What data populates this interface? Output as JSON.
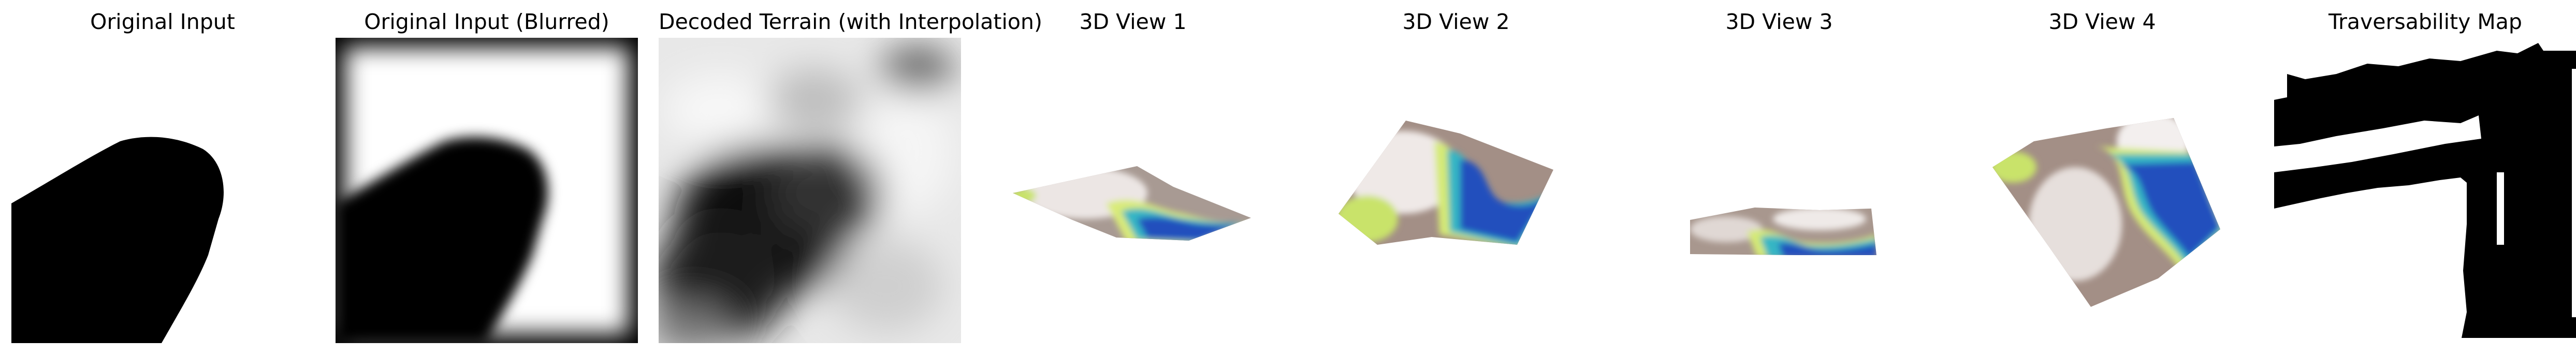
{
  "panels": [
    {
      "title": "Original Input"
    },
    {
      "title": "Original Input (Blurred)"
    },
    {
      "title": "Decoded Terrain (with Interpolation)"
    },
    {
      "title": "3D View 1"
    },
    {
      "title": "3D View 2"
    },
    {
      "title": "3D View 3"
    },
    {
      "title": "3D View 4"
    },
    {
      "title": "Traversability Map"
    }
  ],
  "colors": {
    "terrain_high": "#f2eeee",
    "terrain_mid": "#9b8a80",
    "terrain_green": "#d8e87a",
    "terrain_cyan": "#2db3c8",
    "terrain_low": "#1f4fb8"
  }
}
